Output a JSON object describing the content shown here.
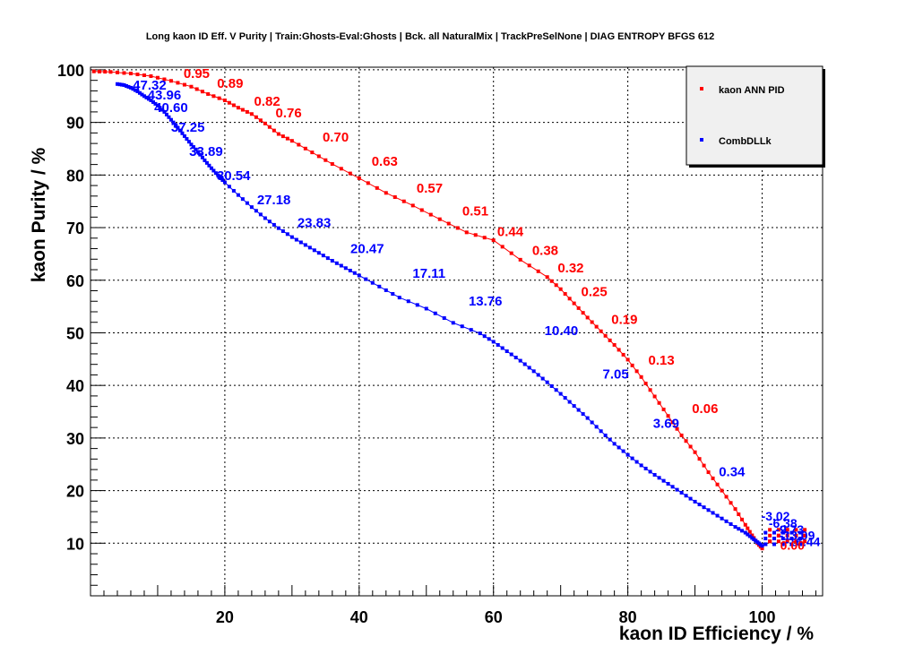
{
  "chart_data": {
    "type": "line",
    "title": "Long kaon ID Eff. V Purity | Train:Ghosts-Eval:Ghosts | Bck. all NaturalMix | TrackPreSelNone | DIAG ENTROPY BFGS 612",
    "xlabel": "kaon ID Efficiency / %",
    "ylabel": "kaon Purity / %",
    "xlim": [
      0,
      109
    ],
    "ylim": [
      0,
      100.5
    ],
    "x_ticks": [
      20,
      40,
      60,
      80,
      100
    ],
    "y_ticks": [
      10,
      20,
      30,
      40,
      50,
      60,
      70,
      80,
      90,
      100
    ],
    "grid": true,
    "legend_position": "top-right",
    "series": [
      {
        "name": "kaon ANN PID",
        "color": "#ff0000",
        "x": [
          0.5,
          3,
          6,
          9,
          12,
          15,
          17.5,
          20,
          22,
          24,
          26,
          28,
          30,
          33,
          36,
          40,
          44,
          48,
          52,
          56,
          60,
          64,
          68,
          70,
          72,
          74,
          76,
          78,
          80,
          82,
          84,
          86,
          88,
          90,
          92,
          94,
          96,
          97.5,
          98.5,
          99.3,
          100
        ],
        "y": [
          99.7,
          99.6,
          99.3,
          98.8,
          97.9,
          96.8,
          95.4,
          94.2,
          92.8,
          91.6,
          89.8,
          87.8,
          86.5,
          84.3,
          82.1,
          79.4,
          76.6,
          74.2,
          71.6,
          69.1,
          67.6,
          63.9,
          60.6,
          58.3,
          55.6,
          52.9,
          50.3,
          47.7,
          44.9,
          41.6,
          37.9,
          34.2,
          30.5,
          27.3,
          23.5,
          20.0,
          16.5,
          13.5,
          11.5,
          10.0,
          9.0
        ],
        "labels": [
          {
            "text": "0.95",
            "x": 15.8,
            "y": 99.5
          },
          {
            "text": "0.89",
            "x": 20.8,
            "y": 97.6
          },
          {
            "text": "0.82",
            "x": 26.3,
            "y": 94.2
          },
          {
            "text": "0.76",
            "x": 29.5,
            "y": 92.0
          },
          {
            "text": "0.70",
            "x": 36.5,
            "y": 87.4
          },
          {
            "text": "0.63",
            "x": 43.8,
            "y": 82.8
          },
          {
            "text": "0.57",
            "x": 50.5,
            "y": 77.7
          },
          {
            "text": "0.51",
            "x": 57.3,
            "y": 73.3
          },
          {
            "text": "0.44",
            "x": 62.5,
            "y": 69.4
          },
          {
            "text": "0.38",
            "x": 67.7,
            "y": 65.8
          },
          {
            "text": "0.32",
            "x": 71.5,
            "y": 62.5
          },
          {
            "text": "0.25",
            "x": 75.0,
            "y": 58.0
          },
          {
            "text": "0.19",
            "x": 79.5,
            "y": 52.7
          },
          {
            "text": "0.13",
            "x": 85.0,
            "y": 45.0
          },
          {
            "text": "0.06",
            "x": 91.5,
            "y": 35.8
          }
        ]
      },
      {
        "name": "CombDLLk",
        "color": "#0000ff",
        "x": [
          4,
          5,
          6,
          7,
          8,
          9,
          10,
          11,
          12,
          13,
          14,
          15,
          16,
          17,
          18,
          19,
          20,
          22,
          24,
          26,
          28,
          30,
          32,
          34,
          36,
          38,
          40,
          43,
          46,
          50,
          54,
          58,
          60,
          62,
          64,
          66,
          68,
          70,
          72,
          74,
          76,
          78,
          80,
          82,
          84,
          86,
          88,
          90,
          92,
          94,
          96,
          97.5,
          98.5,
          99.3,
          100
        ],
        "y": [
          97.3,
          97.1,
          96.6,
          95.9,
          95.0,
          94.2,
          93.2,
          92.0,
          90.5,
          89.0,
          87.4,
          85.8,
          84.4,
          82.8,
          81.3,
          79.9,
          78.6,
          76.2,
          73.9,
          71.8,
          69.9,
          68.2,
          66.7,
          65.2,
          63.7,
          62.3,
          60.9,
          58.8,
          56.7,
          54.6,
          51.9,
          49.9,
          48.3,
          46.5,
          44.7,
          42.7,
          40.6,
          38.4,
          36.1,
          33.8,
          31.3,
          28.9,
          26.8,
          24.8,
          23.0,
          21.3,
          19.6,
          17.9,
          16.3,
          14.7,
          13.1,
          12.0,
          11.0,
          10.2,
          9.5
        ],
        "labels": [
          {
            "text": "47.32",
            "x": 8.8,
            "y": 97.3
          },
          {
            "text": "43.96",
            "x": 11.0,
            "y": 95.4
          },
          {
            "text": "40.60",
            "x": 12.0,
            "y": 93.0
          },
          {
            "text": "37.25",
            "x": 14.5,
            "y": 89.3
          },
          {
            "text": "33.89",
            "x": 17.2,
            "y": 84.7
          },
          {
            "text": "30.54",
            "x": 21.3,
            "y": 80.1
          },
          {
            "text": "27.18",
            "x": 27.3,
            "y": 75.5
          },
          {
            "text": "23.83",
            "x": 33.3,
            "y": 71.1
          },
          {
            "text": "20.47",
            "x": 41.2,
            "y": 66.2
          },
          {
            "text": "17.11",
            "x": 50.4,
            "y": 61.5
          },
          {
            "text": "13.76",
            "x": 58.8,
            "y": 56.2
          },
          {
            "text": "10.40",
            "x": 70.1,
            "y": 50.6
          },
          {
            "text": "7.05",
            "x": 78.2,
            "y": 42.3
          },
          {
            "text": "3.69",
            "x": 85.7,
            "y": 33.0
          },
          {
            "text": "0.34",
            "x": 95.5,
            "y": 23.8
          }
        ]
      }
    ],
    "tail_labels": {
      "blue": [
        "-3.02",
        "-6.38",
        "-9.73",
        "-13.09",
        "-16.44"
      ],
      "red": [
        "0.00"
      ]
    }
  }
}
